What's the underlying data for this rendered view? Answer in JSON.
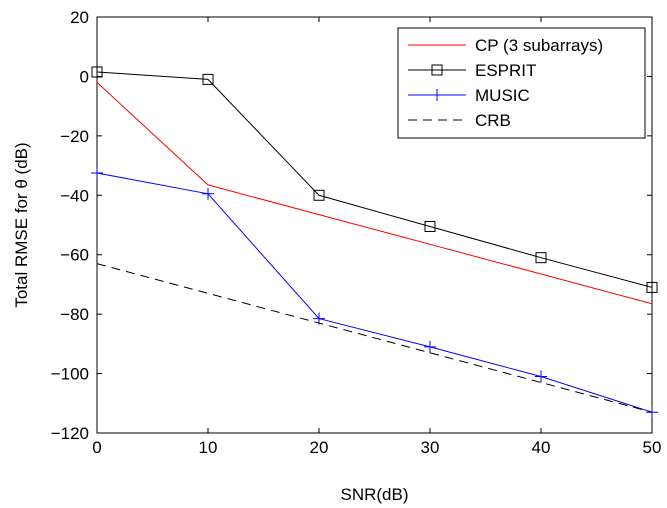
{
  "chart_data": {
    "type": "line",
    "xlabel": "SNR(dB)",
    "ylabel": "Total RMSE for θ (dB)",
    "xlim": [
      0,
      50
    ],
    "ylim": [
      -120,
      20
    ],
    "xticks": [
      0,
      10,
      20,
      30,
      40,
      50
    ],
    "yticks": [
      20,
      0,
      -20,
      -40,
      -60,
      -80,
      -100,
      -120
    ],
    "xtick_labels": [
      "0",
      "10",
      "20",
      "30",
      "40",
      "50"
    ],
    "ytick_labels": [
      "20",
      "0",
      "−20",
      "−40",
      "−60",
      "−80",
      "−100",
      "−120"
    ],
    "grid": false,
    "legend_position": "top-right",
    "series": [
      {
        "name": "CP (3 subarrays)",
        "color": "#ff0000",
        "dash": "solid",
        "marker": "none",
        "x": [
          0,
          10,
          20,
          30,
          40,
          50
        ],
        "y": [
          -2,
          -36.5,
          -46.5,
          -56.5,
          -66.5,
          -76.5
        ]
      },
      {
        "name": "ESPRIT",
        "color": "#000000",
        "dash": "solid",
        "marker": "square",
        "x": [
          0,
          10,
          20,
          30,
          40,
          50
        ],
        "y": [
          1.5,
          -1,
          -40,
          -50.5,
          -61,
          -71
        ]
      },
      {
        "name": "MUSIC",
        "color": "#0000ff",
        "dash": "solid",
        "marker": "plus",
        "x": [
          0,
          10,
          20,
          30,
          40,
          50
        ],
        "y": [
          -32.5,
          -39.5,
          -81.5,
          -91,
          -101,
          -113
        ]
      },
      {
        "name": "CRB",
        "color": "#000000",
        "dash": "dashed",
        "marker": "none",
        "x": [
          0,
          10,
          20,
          30,
          40,
          50
        ],
        "y": [
          -63,
          -73,
          -83,
          -93,
          -103,
          -113
        ]
      }
    ]
  }
}
